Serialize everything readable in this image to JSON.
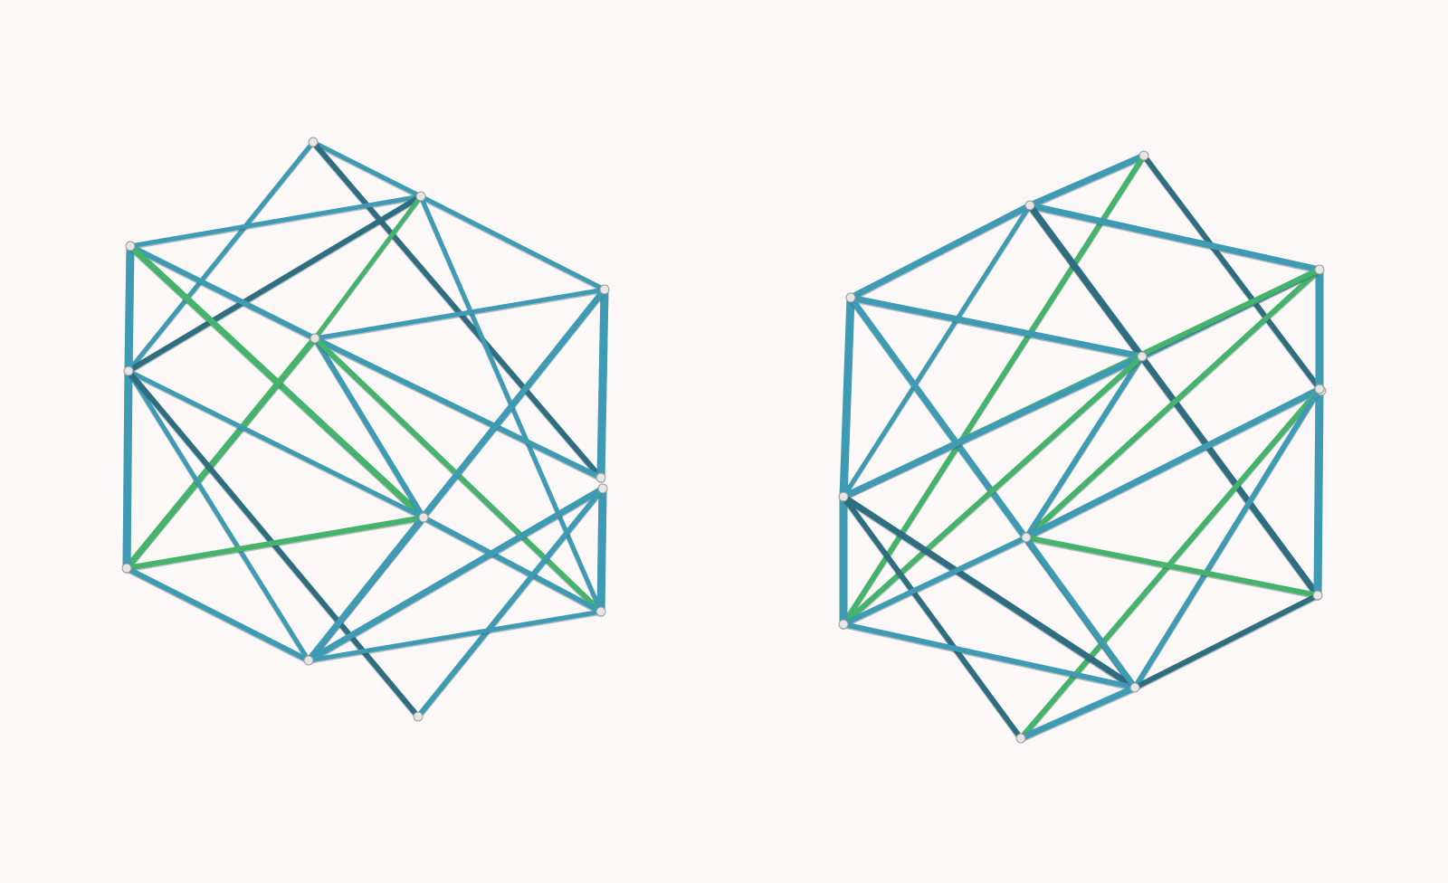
{
  "scene": {
    "background": "#fdf8f8",
    "colors": {
      "blue_strut": "#3f9bb3",
      "green_strut": "#45b36b",
      "dark_strut": "#2f6e80",
      "node": "#e6e6e6"
    },
    "models": [
      {
        "name": "left-tensegrity-model",
        "view": "left"
      },
      {
        "name": "right-tensegrity-model",
        "view": "right"
      }
    ]
  }
}
